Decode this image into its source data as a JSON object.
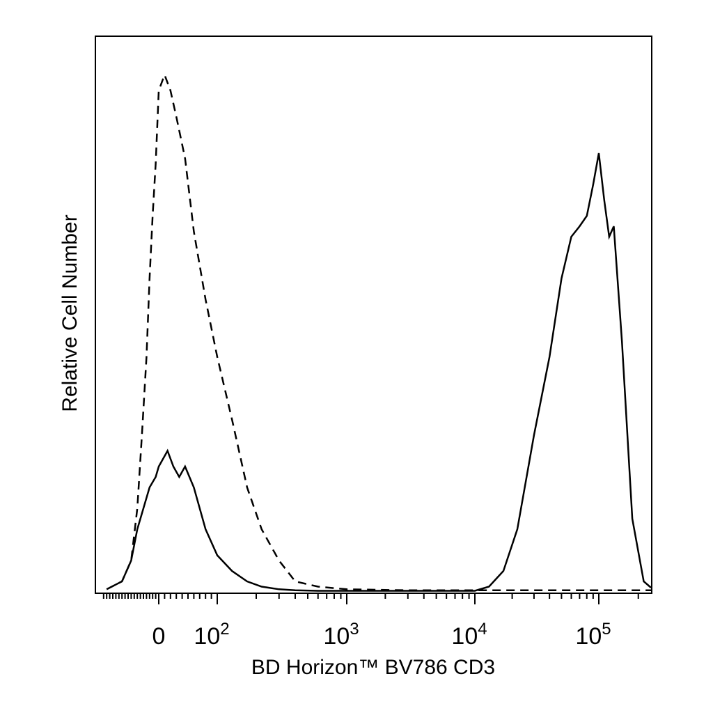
{
  "chart_data": {
    "type": "line",
    "title": "",
    "xlabel": "BD Horizon™ BV786 CD3",
    "ylabel": "Relative Cell Number",
    "x_scale": "biexponential",
    "xlim": [
      -200,
      250000
    ],
    "ylim": [
      0,
      1
    ],
    "grid": false,
    "legend": "none",
    "x_ticks": [
      {
        "value": 0,
        "base": "0",
        "exp": ""
      },
      {
        "value": 100,
        "base": "10",
        "exp": "2"
      },
      {
        "value": 1000,
        "base": "10",
        "exp": "3"
      },
      {
        "value": 10000,
        "base": "10",
        "exp": "4"
      },
      {
        "value": 100000,
        "base": "10",
        "exp": "5"
      }
    ],
    "series": [
      {
        "style": "dashed",
        "x": [
          -170,
          -120,
          -90,
          -70,
          -55,
          -40,
          -30,
          -20,
          -10,
          0,
          10,
          20,
          30,
          45,
          60,
          80,
          100,
          130,
          170,
          220,
          300,
          400,
          600,
          1000,
          3000,
          10000,
          100000,
          250000
        ],
        "y": [
          0.005,
          0.02,
          0.06,
          0.16,
          0.3,
          0.45,
          0.6,
          0.72,
          0.82,
          0.96,
          0.99,
          0.96,
          0.91,
          0.83,
          0.69,
          0.56,
          0.45,
          0.33,
          0.2,
          0.12,
          0.06,
          0.02,
          0.01,
          0.005,
          0.003,
          0.003,
          0.003,
          0.003
        ]
      },
      {
        "style": "solid",
        "x": [
          -170,
          -120,
          -90,
          -70,
          -50,
          -30,
          -10,
          0,
          15,
          25,
          35,
          45,
          60,
          80,
          100,
          130,
          170,
          220,
          300,
          400,
          600,
          1000,
          3000,
          10000,
          13000,
          17000,
          22000,
          30000,
          40000,
          50000,
          60000,
          70000,
          80000,
          90000,
          100000,
          110000,
          120000,
          130000,
          150000,
          180000,
          220000,
          250000
        ],
        "y": [
          0.005,
          0.02,
          0.06,
          0.12,
          0.16,
          0.2,
          0.22,
          0.24,
          0.27,
          0.24,
          0.22,
          0.24,
          0.2,
          0.12,
          0.07,
          0.04,
          0.02,
          0.01,
          0.005,
          0.003,
          0.002,
          0.002,
          0.002,
          0.002,
          0.01,
          0.04,
          0.12,
          0.3,
          0.45,
          0.6,
          0.68,
          0.7,
          0.72,
          0.78,
          0.84,
          0.75,
          0.68,
          0.7,
          0.48,
          0.14,
          0.02,
          0.008
        ]
      }
    ]
  }
}
